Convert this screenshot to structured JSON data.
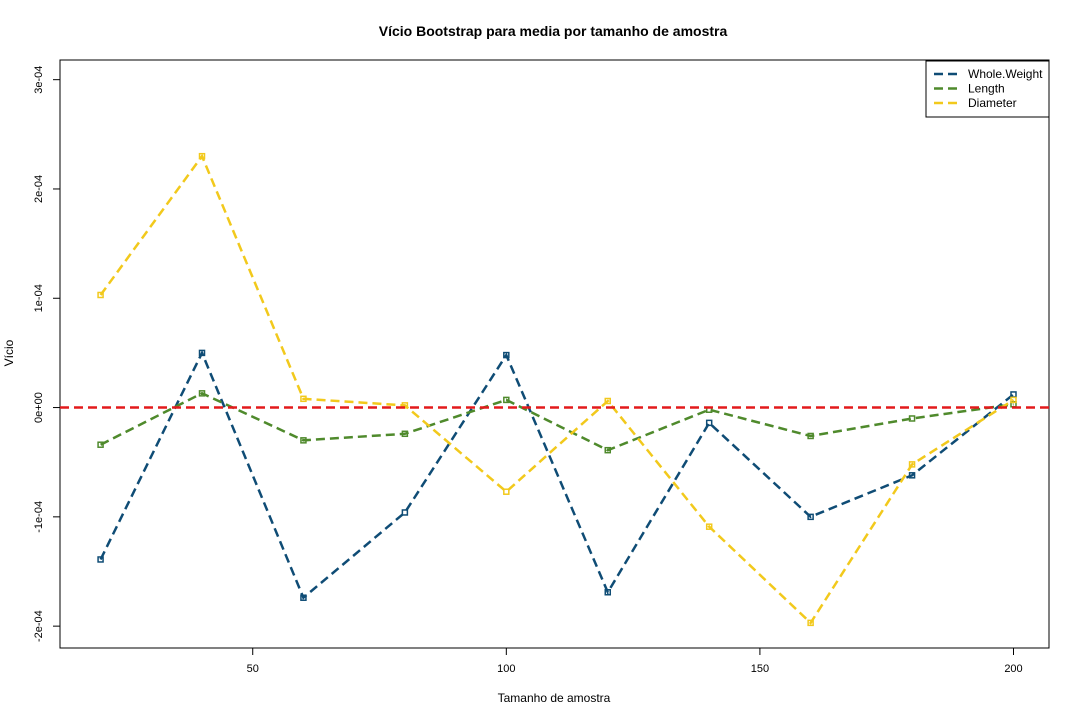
{
  "chart_data": {
    "type": "line",
    "title": "Vício Bootstrap para media por tamanho de amostra",
    "xlabel": "Tamanho de amostra",
    "ylabel": "Vício",
    "x": [
      20,
      40,
      60,
      80,
      100,
      120,
      140,
      160,
      180,
      200
    ],
    "xlim": [
      12,
      207
    ],
    "ylim": [
      -0.00022,
      0.000318
    ],
    "xticks": [
      50,
      100,
      150,
      200
    ],
    "xtick_labels": [
      "50",
      "100",
      "150",
      "200"
    ],
    "yticks": [
      -0.0002,
      -0.0001,
      0,
      0.0001,
      0.0002,
      0.0003
    ],
    "ytick_labels": [
      "-2e-04",
      "-1e-04",
      "0e+00",
      "1e-04",
      "2e-04",
      "3e-04"
    ],
    "grid": false,
    "legend_position": "top-right",
    "reference_line": {
      "y": 0,
      "color": "#e31a1c",
      "style": "dashed"
    },
    "series": [
      {
        "name": "Whole.Weight",
        "color": "#0f4c75",
        "style": "dashed",
        "marker": "square-open",
        "values": [
          -0.000139,
          5e-05,
          -0.000174,
          -9.6e-05,
          4.8e-05,
          -0.000169,
          -1.4e-05,
          -0.0001,
          -6.2e-05,
          1.2e-05
        ]
      },
      {
        "name": "Length",
        "color": "#4f8a2c",
        "style": "dashed",
        "marker": "square-open",
        "values": [
          -3.4e-05,
          1.3e-05,
          -3e-05,
          -2.4e-05,
          7e-06,
          -3.9e-05,
          -2e-06,
          -2.6e-05,
          -1e-05,
          3e-06
        ]
      },
      {
        "name": "Diameter",
        "color": "#f2c91c",
        "style": "dashed",
        "marker": "square-open",
        "values": [
          0.000103,
          0.00023,
          8e-06,
          2e-06,
          -7.7e-05,
          6e-06,
          -0.000109,
          -0.000197,
          -5.2e-05,
          7e-06
        ]
      }
    ]
  }
}
